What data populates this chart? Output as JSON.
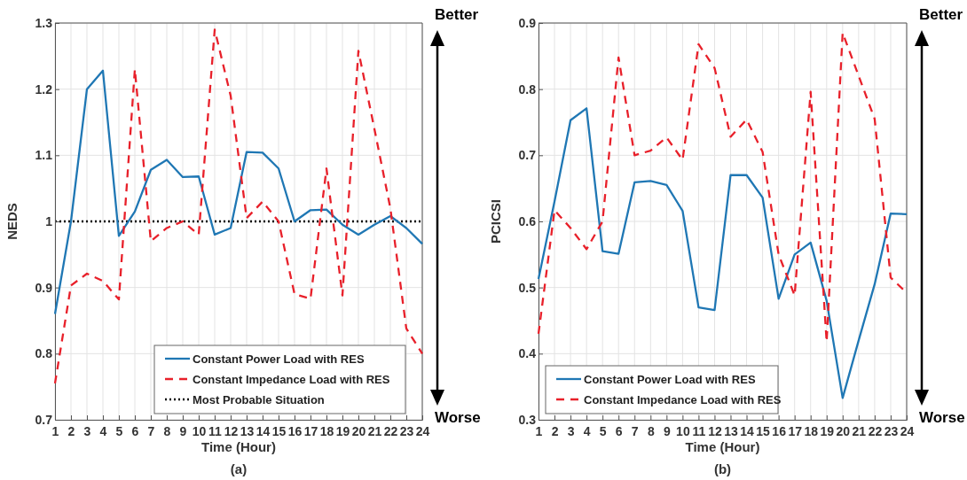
{
  "chart_data": [
    {
      "type": "line",
      "xlabel": "Time (Hour)",
      "ylabel": "NEDS",
      "x": [
        1,
        2,
        3,
        4,
        5,
        6,
        7,
        8,
        9,
        10,
        11,
        12,
        13,
        14,
        15,
        16,
        17,
        18,
        19,
        20,
        21,
        22,
        23,
        24
      ],
      "xlim": [
        1,
        24
      ],
      "xticks": [
        1,
        2,
        3,
        4,
        5,
        6,
        7,
        8,
        9,
        10,
        11,
        12,
        13,
        14,
        15,
        16,
        17,
        18,
        19,
        20,
        21,
        22,
        23,
        24
      ],
      "ylim": [
        0.7,
        1.3
      ],
      "yticks": [
        0.7,
        0.8,
        0.9,
        1,
        1.1,
        1.2,
        1.3
      ],
      "grid": true,
      "legend": "bottom",
      "annotations": [
        "(a)",
        "Better",
        "Worse"
      ],
      "series": [
        {
          "name": "Constant Power Load with RES",
          "color": "#1f77b4",
          "line_style": "solid",
          "values": [
            0.86,
            1.0,
            1.2,
            1.228,
            0.978,
            1.015,
            1.078,
            1.093,
            1.067,
            1.068,
            0.98,
            0.99,
            1.105,
            1.104,
            1.08,
            1.0,
            1.017,
            1.018,
            0.995,
            0.98,
            0.995,
            1.008,
            0.99,
            0.966
          ]
        },
        {
          "name": "Constant Impedance Load with RES",
          "color": "#e8202a",
          "line_style": "dashed",
          "values": [
            0.755,
            0.903,
            0.921,
            0.91,
            0.882,
            1.23,
            0.97,
            0.99,
            1.0,
            0.98,
            1.29,
            1.19,
            1.005,
            1.03,
            1.0,
            0.89,
            0.883,
            1.08,
            0.888,
            1.258,
            1.14,
            1.02,
            0.838,
            0.8
          ]
        }
      ],
      "ref_lines": [
        {
          "axis": "y",
          "value": 1,
          "label": "Most Probable Situation",
          "color": "#000000",
          "line_style": "dotted"
        }
      ]
    },
    {
      "type": "line",
      "xlabel": "Time (Hour)",
      "ylabel": "PCICSI",
      "x": [
        1,
        2,
        3,
        4,
        5,
        6,
        7,
        8,
        9,
        10,
        11,
        12,
        13,
        14,
        15,
        16,
        17,
        18,
        19,
        20,
        21,
        22,
        23,
        24
      ],
      "xlim": [
        1,
        24
      ],
      "xticks": [
        1,
        2,
        3,
        4,
        5,
        6,
        7,
        8,
        9,
        10,
        11,
        12,
        13,
        14,
        15,
        16,
        17,
        18,
        19,
        20,
        21,
        22,
        23,
        24
      ],
      "ylim": [
        0.3,
        0.9
      ],
      "yticks": [
        0.3,
        0.4,
        0.5,
        0.6,
        0.7,
        0.8,
        0.9
      ],
      "grid": true,
      "legend": "bottom left",
      "annotations": [
        "(b)",
        "Better",
        "Worse"
      ],
      "series": [
        {
          "name": "Constant Power Load with RES",
          "color": "#1f77b4",
          "line_style": "solid",
          "values": [
            0.513,
            0.63,
            0.753,
            0.771,
            0.555,
            0.551,
            0.659,
            0.661,
            0.655,
            0.616,
            0.47,
            0.466,
            0.67,
            0.67,
            0.636,
            0.483,
            0.55,
            0.568,
            0.48,
            0.333,
            0.42,
            0.505,
            0.612,
            0.611
          ]
        },
        {
          "name": "Constant Impedance Load with RES",
          "color": "#e8202a",
          "line_style": "dashed",
          "values": [
            0.43,
            0.617,
            0.59,
            0.558,
            0.6,
            0.848,
            0.7,
            0.707,
            0.727,
            0.693,
            0.868,
            0.832,
            0.728,
            0.754,
            0.705,
            0.55,
            0.488,
            0.796,
            0.418,
            0.885,
            0.82,
            0.755,
            0.515,
            0.492
          ]
        }
      ]
    }
  ]
}
